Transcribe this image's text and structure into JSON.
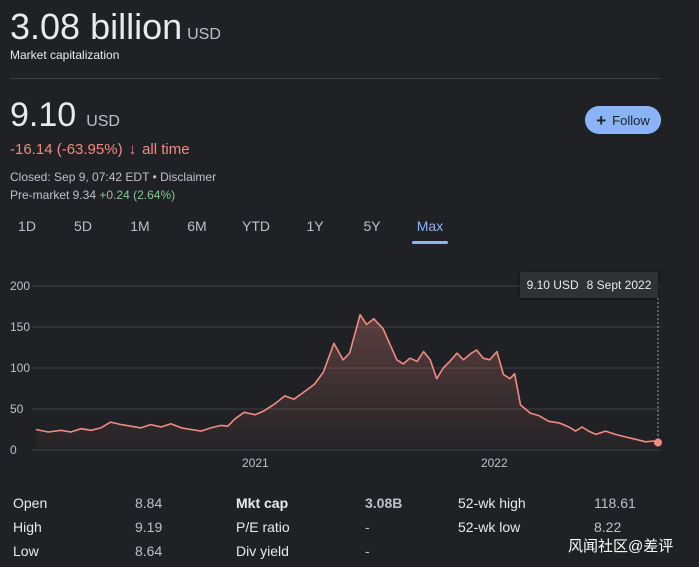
{
  "market_cap": {
    "value": "3.08 billion",
    "currency": "USD",
    "label": "Market capitalization"
  },
  "quote": {
    "price": "9.10",
    "currency": "USD",
    "change": "-16.14 (-63.95%)",
    "change_arrow": "↓",
    "change_period": "all time",
    "closed": "Closed: Sep 9, 07:42 EDT • Disclaimer",
    "premarket_prefix": "Pre-market 9.34",
    "premarket_change": "+0.24 (2.64%)",
    "follow_label": "Follow",
    "follow_icon": "plus-icon"
  },
  "ranges": [
    "1D",
    "5D",
    "1M",
    "6M",
    "YTD",
    "1Y",
    "5Y",
    "Max"
  ],
  "active_range": "Max",
  "tooltip": {
    "price": "9.10 USD",
    "date": "8 Sept 2022"
  },
  "stats": [
    [
      {
        "label": "Open",
        "value": "8.84"
      },
      {
        "label": "Mkt cap",
        "value": "3.08B"
      },
      {
        "label": "52-wk high",
        "value": "118.61"
      }
    ],
    [
      {
        "label": "High",
        "value": "9.19"
      },
      {
        "label": "P/E ratio",
        "value": "-"
      },
      {
        "label": "52-wk low",
        "value": "8.22"
      }
    ],
    [
      {
        "label": "Low",
        "value": "8.64"
      },
      {
        "label": "Div yield",
        "value": "-"
      },
      {
        "label": "",
        "value": ""
      }
    ]
  ],
  "watermark": "风闻社区@差评",
  "colors": {
    "background": "#202124",
    "accent": "#8ab4f8",
    "negative": "#f28b82",
    "positive": "#81c995",
    "line": "#f28b82"
  },
  "chart_data": {
    "type": "area",
    "ylim": [
      0,
      200
    ],
    "yticks": [
      0,
      50,
      100,
      150,
      200
    ],
    "xticks": [
      {
        "date": "2021-01-01",
        "label": "2021"
      },
      {
        "date": "2022-01-01",
        "label": "2022"
      }
    ],
    "x_range": [
      "2020-02-01",
      "2022-09-08"
    ],
    "grid": true,
    "series": [
      {
        "points": [
          [
            "2020-02-01",
            25
          ],
          [
            "2020-02-20",
            22
          ],
          [
            "2020-03-10",
            24
          ],
          [
            "2020-03-25",
            22
          ],
          [
            "2020-04-10",
            26
          ],
          [
            "2020-04-25",
            24
          ],
          [
            "2020-05-10",
            27
          ],
          [
            "2020-05-25",
            34
          ],
          [
            "2020-06-10",
            31
          ],
          [
            "2020-06-25",
            29
          ],
          [
            "2020-07-10",
            27
          ],
          [
            "2020-07-25",
            31
          ],
          [
            "2020-08-10",
            28
          ],
          [
            "2020-08-25",
            32
          ],
          [
            "2020-09-10",
            27
          ],
          [
            "2020-09-25",
            25
          ],
          [
            "2020-10-10",
            23
          ],
          [
            "2020-10-25",
            27
          ],
          [
            "2020-11-10",
            30
          ],
          [
            "2020-11-20",
            29
          ],
          [
            "2020-12-01",
            38
          ],
          [
            "2020-12-15",
            46
          ],
          [
            "2021-01-01",
            43
          ],
          [
            "2021-01-15",
            48
          ],
          [
            "2021-02-01",
            57
          ],
          [
            "2021-02-15",
            66
          ],
          [
            "2021-03-01",
            62
          ],
          [
            "2021-03-15",
            70
          ],
          [
            "2021-04-01",
            80
          ],
          [
            "2021-04-15",
            95
          ],
          [
            "2021-05-01",
            130
          ],
          [
            "2021-05-15",
            110
          ],
          [
            "2021-05-25",
            118
          ],
          [
            "2021-06-10",
            165
          ],
          [
            "2021-06-20",
            153
          ],
          [
            "2021-07-01",
            160
          ],
          [
            "2021-07-15",
            148
          ],
          [
            "2021-07-25",
            130
          ],
          [
            "2021-08-05",
            110
          ],
          [
            "2021-08-15",
            105
          ],
          [
            "2021-08-25",
            112
          ],
          [
            "2021-09-05",
            108
          ],
          [
            "2021-09-15",
            120
          ],
          [
            "2021-09-25",
            110
          ],
          [
            "2021-10-05",
            87
          ],
          [
            "2021-10-15",
            100
          ],
          [
            "2021-10-25",
            108
          ],
          [
            "2021-11-05",
            118
          ],
          [
            "2021-11-15",
            110
          ],
          [
            "2021-11-25",
            117
          ],
          [
            "2021-12-05",
            122
          ],
          [
            "2021-12-15",
            112
          ],
          [
            "2021-12-25",
            110
          ],
          [
            "2022-01-05",
            120
          ],
          [
            "2022-01-15",
            92
          ],
          [
            "2022-01-25",
            87
          ],
          [
            "2022-02-01",
            93
          ],
          [
            "2022-02-10",
            55
          ],
          [
            "2022-02-25",
            45
          ],
          [
            "2022-03-10",
            42
          ],
          [
            "2022-03-25",
            35
          ],
          [
            "2022-04-10",
            33
          ],
          [
            "2022-04-25",
            28
          ],
          [
            "2022-05-05",
            23
          ],
          [
            "2022-05-15",
            28
          ],
          [
            "2022-05-25",
            23
          ],
          [
            "2022-06-05",
            19
          ],
          [
            "2022-06-20",
            23
          ],
          [
            "2022-07-05",
            19
          ],
          [
            "2022-07-20",
            16
          ],
          [
            "2022-08-05",
            13
          ],
          [
            "2022-08-20",
            10
          ],
          [
            "2022-09-01",
            11
          ],
          [
            "2022-09-08",
            9.1
          ]
        ]
      }
    ]
  }
}
